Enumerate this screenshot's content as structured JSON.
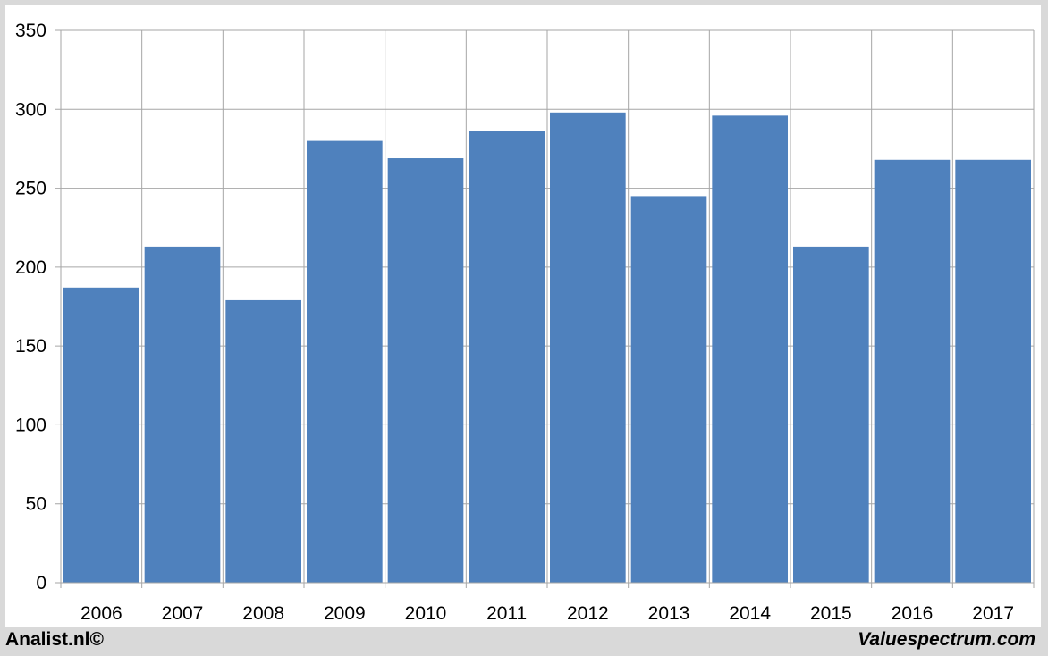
{
  "colors": {
    "bar": "#4f81bd",
    "grid": "#a6a6a6",
    "background": "#ffffff",
    "outer": "#d9d9d9"
  },
  "footer": {
    "left_label": "Analist.nl©",
    "right_label": "Valuespectrum.com"
  },
  "chart_data": {
    "type": "bar",
    "categories": [
      "2006",
      "2007",
      "2008",
      "2009",
      "2010",
      "2011",
      "2012",
      "2013",
      "2014",
      "2015",
      "2016",
      "2017"
    ],
    "values": [
      187,
      213,
      179,
      280,
      269,
      286,
      298,
      245,
      296,
      213,
      268,
      268
    ],
    "ylim": [
      0,
      350
    ],
    "yticks": [
      0,
      50,
      100,
      150,
      200,
      250,
      300,
      350
    ],
    "grid": true,
    "legend": "none"
  }
}
